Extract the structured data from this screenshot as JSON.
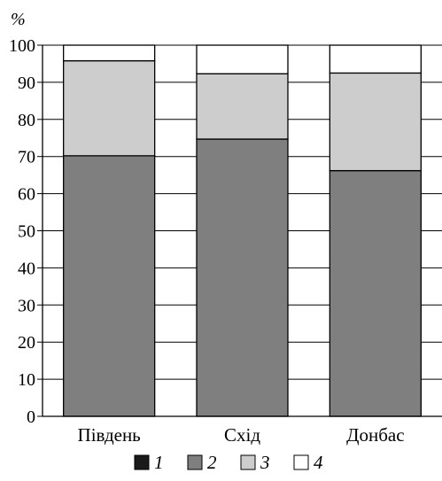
{
  "chart_data": {
    "type": "bar",
    "stacked": true,
    "unit_label": "%",
    "categories": [
      "Південь",
      "Схід",
      "Донбас"
    ],
    "series": [
      {
        "name": "1",
        "color": "#1a1a1a",
        "values": [
          0,
          0,
          0
        ]
      },
      {
        "name": "2",
        "color": "#7f7f80",
        "values": [
          70.2,
          74.7,
          66.2
        ]
      },
      {
        "name": "3",
        "color": "#cdcdcd",
        "values": [
          25.6,
          17.6,
          26.3
        ]
      },
      {
        "name": "4",
        "color": "#ffffff",
        "values": [
          4.2,
          7.7,
          7.5
        ]
      }
    ],
    "ylim": [
      0,
      100
    ],
    "yticks": [
      "0",
      "10",
      "20",
      "30",
      "40",
      "50",
      "60",
      "70",
      "80",
      "90",
      "100"
    ],
    "grid": true,
    "legend_position": "bottom"
  }
}
